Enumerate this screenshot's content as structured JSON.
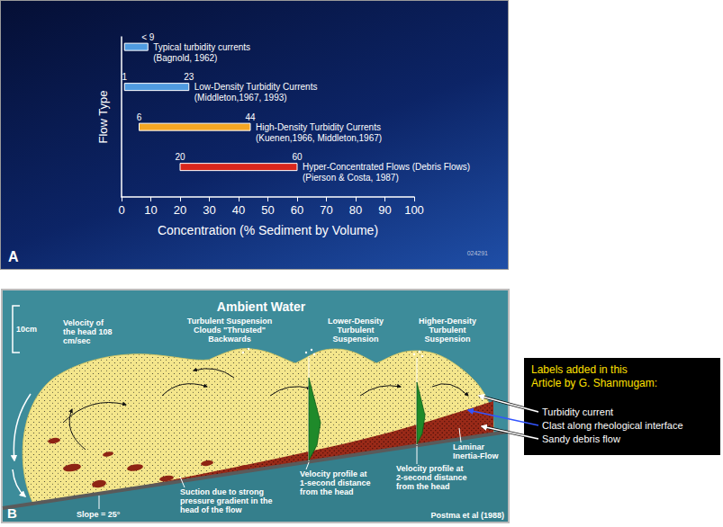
{
  "chart_data": {
    "type": "range_bar",
    "panel": "A",
    "orientation": "horizontal",
    "ylabel": "Flow Type",
    "xlabel": "Concentration (% Sediment by Volume)",
    "categories": [
      "Typical turbidity currents",
      "Low-Density Turbidity Currents",
      "High-Density Turbidity Currents",
      "Hyper-Concentrated Flows (Debris Flows)"
    ],
    "sources": [
      "(Bagnold, 1962)",
      "(Middleton,1967, 1993)",
      "(Kuenen,1966, Middleton,1967)",
      "(Pierson & Costa, 1987)"
    ],
    "low": [
      1,
      1,
      6,
      20
    ],
    "high": [
      9,
      23,
      44,
      60
    ],
    "low_labels": [
      null,
      "1",
      "6",
      "20"
    ],
    "high_labels": [
      "< 9",
      "23",
      "44",
      "60"
    ],
    "colors": [
      "#4f9be0",
      "#4f9be0",
      "#f5a623",
      "#d9261c"
    ],
    "xlim": [
      0,
      100
    ],
    "xticks": [
      0,
      10,
      20,
      30,
      40,
      50,
      60,
      70,
      80,
      90,
      100
    ],
    "tick_labels": "x",
    "grid": false,
    "data_labels": true,
    "code": "024291"
  },
  "diagram": {
    "panel": "B",
    "title": "Ambient Water",
    "scale": "10cm",
    "head_velocity": [
      "Velocity of",
      "the head 108",
      "cm/sec"
    ],
    "clouds": [
      "Turbulent Suspension",
      "Clouds \"Thrusted\"",
      "Backwards"
    ],
    "lower_density": [
      "Lower-Density",
      "Turbulent",
      "Suspension"
    ],
    "higher_density": [
      "Higher-Density",
      "Turbulent",
      "Suspension"
    ],
    "slope": "Slope = 25°",
    "suction": [
      "Suction due to strong",
      "pressure gradient in the",
      "head of the flow"
    ],
    "profile_1": [
      "Velocity profile at",
      "1-second distance",
      "from the head"
    ],
    "profile_2": [
      "Velocity profile at",
      "2-second distance",
      "from the head"
    ],
    "laminar": [
      "Laminar",
      "Inertia-Flow"
    ],
    "credit": "Postma et al (1988)"
  },
  "added_labels": {
    "note": [
      "Labels added in this",
      "Article by G. Shanmugam:"
    ],
    "items": [
      "Turbidity current",
      "Clast along rheological interface",
      "Sandy debris flow"
    ]
  }
}
